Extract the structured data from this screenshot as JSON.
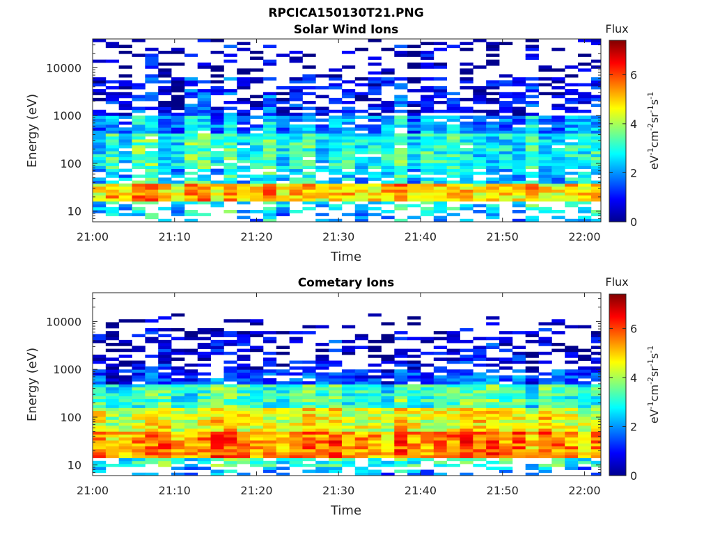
{
  "figure_title": "RPCICA150130T21.PNG",
  "chart_data": [
    {
      "type": "heatmap",
      "title": "Solar Wind Ions",
      "xlabel": "Time",
      "ylabel": "Energy (eV)",
      "x_ticks": [
        "21:00",
        "21:10",
        "21:20",
        "21:30",
        "21:40",
        "21:50",
        "22:00"
      ],
      "xlim": [
        "21:00",
        "22:02"
      ],
      "y_scale": "log",
      "y_ticks": [
        "10",
        "100",
        "1000",
        "10000"
      ],
      "ylim": [
        6,
        40000
      ],
      "grid": false,
      "colorbar": {
        "title": "Flux",
        "label": "eV-1cm-2sr-1s-1",
        "ticks": [
          "0",
          "2",
          "4",
          "6"
        ],
        "range": [
          0,
          7.4
        ],
        "colormap": "jet"
      },
      "spectrogram_profile": {
        "time_step_min": 1.6,
        "energy_bands": [
          {
            "energy_range_eV": [
              6,
              9
            ],
            "flux": 2.2,
            "coverage": 0.35
          },
          {
            "energy_range_eV": [
              9,
              16
            ],
            "flux": 2.8,
            "coverage": 0.55
          },
          {
            "energy_range_eV": [
              16,
              40
            ],
            "flux": 5.0,
            "coverage": 1.0
          },
          {
            "energy_range_eV": [
              40,
              80
            ],
            "flux": 2.6,
            "coverage": 0.75
          },
          {
            "energy_range_eV": [
              80,
              400
            ],
            "flux": 3.0,
            "coverage": 0.95
          },
          {
            "energy_range_eV": [
              400,
              1000
            ],
            "flux": 2.1,
            "coverage": 0.85
          },
          {
            "energy_range_eV": [
              1000,
              6000
            ],
            "flux": 1.0,
            "coverage": 0.6
          },
          {
            "energy_range_eV": [
              6000,
              40000
            ],
            "flux": 0.4,
            "coverage": 0.28
          }
        ]
      }
    },
    {
      "type": "heatmap",
      "title": "Cometary Ions",
      "xlabel": "Time",
      "ylabel": "Energy (eV)",
      "x_ticks": [
        "21:00",
        "21:10",
        "21:20",
        "21:30",
        "21:40",
        "21:50",
        "22:00"
      ],
      "xlim": [
        "21:00",
        "22:02"
      ],
      "y_scale": "log",
      "y_ticks": [
        "10",
        "100",
        "1000",
        "10000"
      ],
      "ylim": [
        6,
        40000
      ],
      "grid": false,
      "colorbar": {
        "title": "Flux",
        "label": "eV-1cm-2sr-1s-1",
        "ticks": [
          "0",
          "2",
          "4",
          "6"
        ],
        "range": [
          0,
          7.4
        ],
        "colormap": "jet"
      },
      "spectrogram_profile": {
        "time_step_min": 1.6,
        "energy_bands": [
          {
            "energy_range_eV": [
              6,
              9
            ],
            "flux": 2.0,
            "coverage": 0.3
          },
          {
            "energy_range_eV": [
              9,
              14
            ],
            "flux": 3.0,
            "coverage": 0.75
          },
          {
            "energy_range_eV": [
              14,
              50
            ],
            "flux": 5.4,
            "coverage": 1.0
          },
          {
            "energy_range_eV": [
              50,
              150
            ],
            "flux": 4.4,
            "coverage": 1.0
          },
          {
            "energy_range_eV": [
              150,
              500
            ],
            "flux": 3.1,
            "coverage": 1.0
          },
          {
            "energy_range_eV": [
              500,
              1000
            ],
            "flux": 1.3,
            "coverage": 0.85
          },
          {
            "energy_range_eV": [
              1000,
              6000
            ],
            "flux": 0.6,
            "coverage": 0.45
          },
          {
            "energy_range_eV": [
              6000,
              14000
            ],
            "flux": 0.3,
            "coverage": 0.12
          }
        ]
      }
    }
  ]
}
